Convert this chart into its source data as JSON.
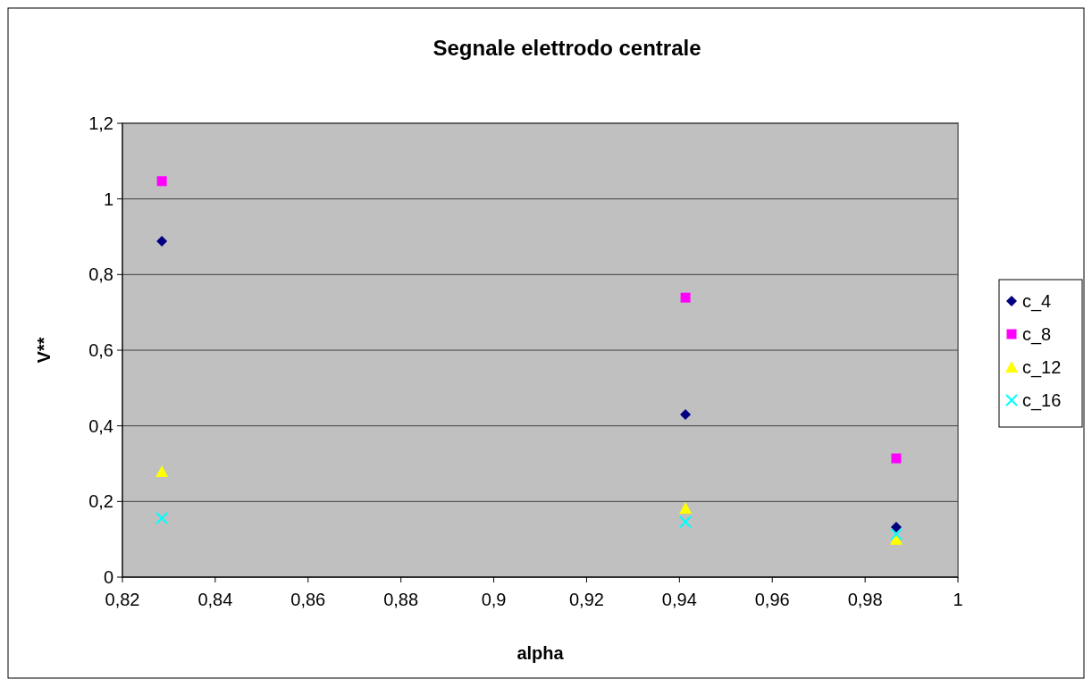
{
  "chart_data": {
    "type": "scatter",
    "title": "Segnale elettrodo centrale",
    "xlabel": "alpha",
    "ylabel": "V**",
    "xlim": [
      0.82,
      1
    ],
    "xticks": [
      {
        "value": 0.82,
        "label": "0,82"
      },
      {
        "value": 0.84,
        "label": "0,84"
      },
      {
        "value": 0.86,
        "label": "0,86"
      },
      {
        "value": 0.88,
        "label": "0,88"
      },
      {
        "value": 0.9,
        "label": "0,9"
      },
      {
        "value": 0.92,
        "label": "0,92"
      },
      {
        "value": 0.94,
        "label": "0,94"
      },
      {
        "value": 0.96,
        "label": "0,96"
      },
      {
        "value": 0.98,
        "label": "0,98"
      },
      1
    ],
    "ylim": [
      0,
      1.2
    ],
    "yticks": [
      0,
      {
        "value": 0.2,
        "label": "0,2"
      },
      {
        "value": 0.4,
        "label": "0,4"
      },
      {
        "value": 0.6,
        "label": "0,6"
      },
      {
        "value": 0.8,
        "label": "0,8"
      },
      1,
      {
        "value": 1.2,
        "label": "1,2"
      }
    ],
    "grid": "y",
    "legend": "right",
    "x": [
      0.8285,
      0.9413,
      0.9867
    ],
    "series": [
      {
        "name": "c_4",
        "color": "#000080",
        "marker": "diamond",
        "values": [
          0.888,
          0.43,
          0.132
        ]
      },
      {
        "name": "c_8",
        "color": "#ff00ff",
        "marker": "square",
        "values": [
          1.047,
          0.739,
          0.314
        ]
      },
      {
        "name": "c_12",
        "color": "#ffff00",
        "marker": "triangle",
        "values": [
          0.279,
          0.182,
          0.1
        ]
      },
      {
        "name": "c_16",
        "color": "#00ffff",
        "marker": "cross",
        "values": [
          0.156,
          0.146,
          0.113
        ]
      }
    ]
  }
}
